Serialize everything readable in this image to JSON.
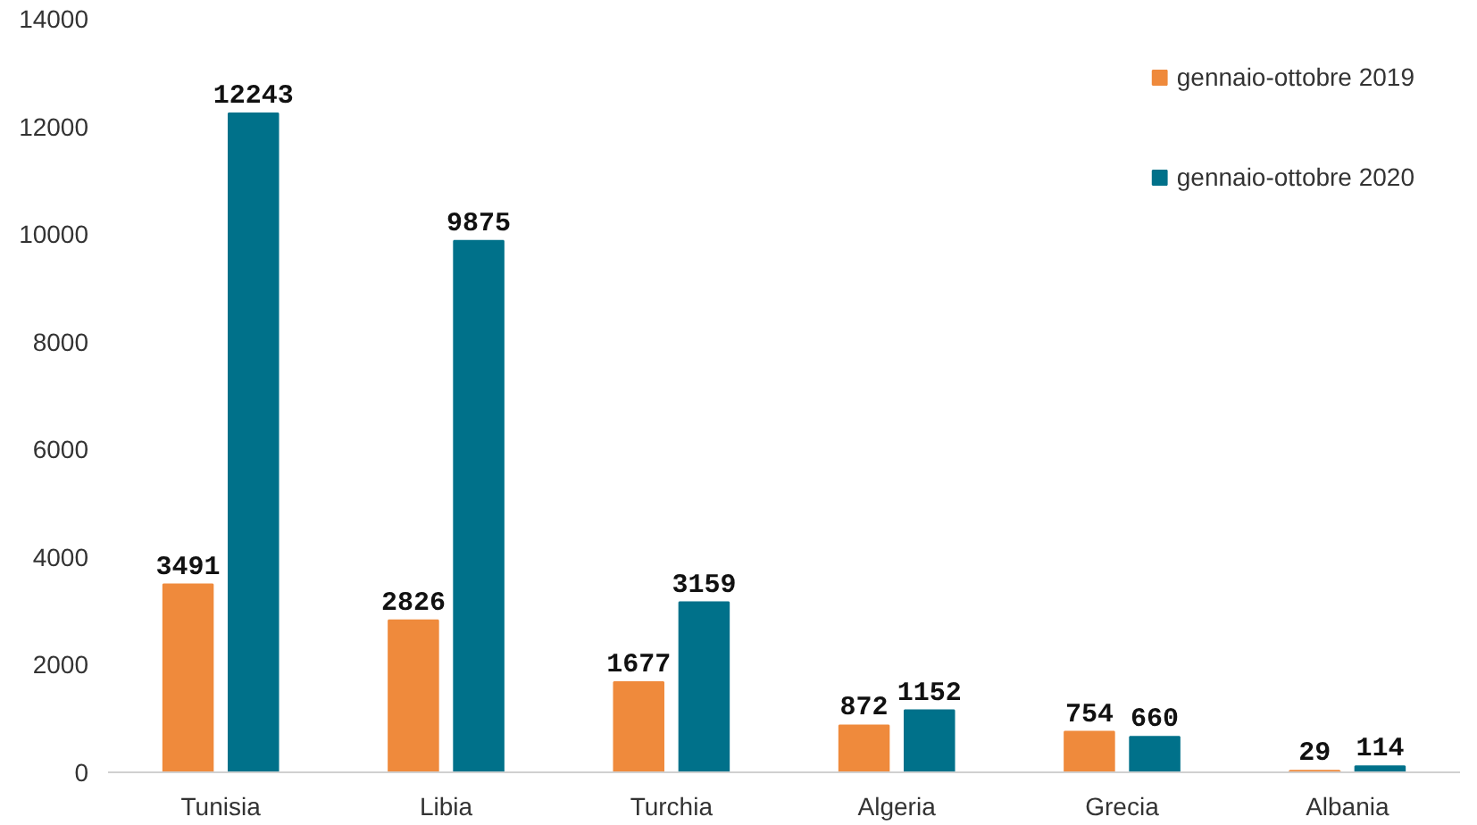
{
  "chart_data": {
    "type": "bar",
    "categories": [
      "Tunisia",
      "Libia",
      "Turchia",
      "Algeria",
      "Grecia",
      "Albania"
    ],
    "series": [
      {
        "name": "gennaio-ottobre 2019",
        "color": "#ef8a3c",
        "values": [
          3491,
          2826,
          1677,
          872,
          754,
          29
        ]
      },
      {
        "name": "gennaio-ottobre 2020",
        "color": "#00718a",
        "values": [
          12243,
          9875,
          3159,
          1152,
          660,
          114
        ]
      }
    ],
    "ylim": [
      0,
      14000
    ],
    "yticks": [
      0,
      2000,
      4000,
      6000,
      8000,
      10000,
      12000,
      14000
    ],
    "grid": false,
    "legend": "top right",
    "data_labels": true
  }
}
